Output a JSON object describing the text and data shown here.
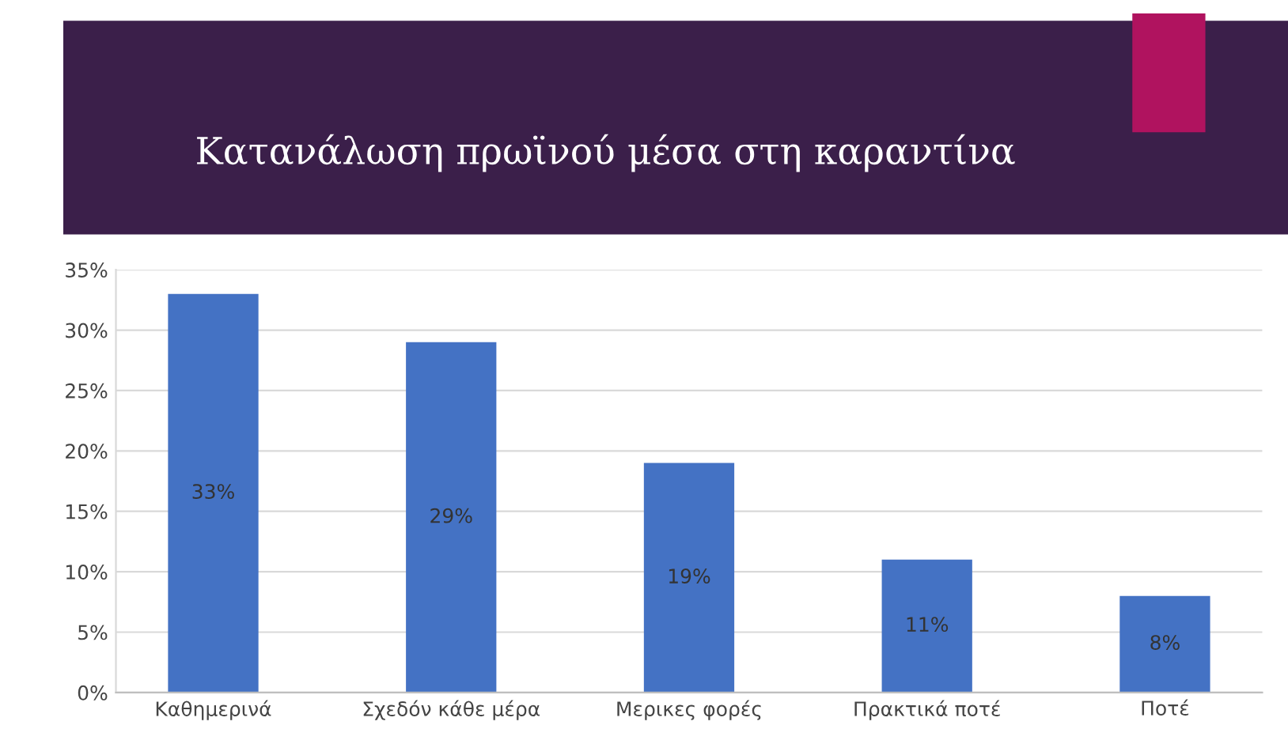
{
  "chart_data": {
    "type": "bar",
    "title": "Κατανάλωση πρωϊνού μέσα στη καραντίνα",
    "categories": [
      "Καθημερινά",
      "Σχεδόν κάθε μέρα",
      "Μερικες φορές",
      "Πρακτικά ποτέ",
      "Ποτέ"
    ],
    "values": [
      33,
      29,
      19,
      11,
      8
    ],
    "value_labels": [
      "33%",
      "29%",
      "19%",
      "11%",
      "8%"
    ],
    "color": "#4472c4",
    "ylim": [
      0,
      35
    ],
    "yticks": [
      {
        "value": 0,
        "label": "0%"
      },
      {
        "value": 5,
        "label": "5%"
      },
      {
        "value": 10,
        "label": "10%"
      },
      {
        "value": 15,
        "label": "15%"
      },
      {
        "value": 20,
        "label": "20%"
      },
      {
        "value": 25,
        "label": "25%"
      },
      {
        "value": 30,
        "label": "30%"
      },
      {
        "value": 35,
        "label": "35%"
      }
    ],
    "grid": "y"
  }
}
